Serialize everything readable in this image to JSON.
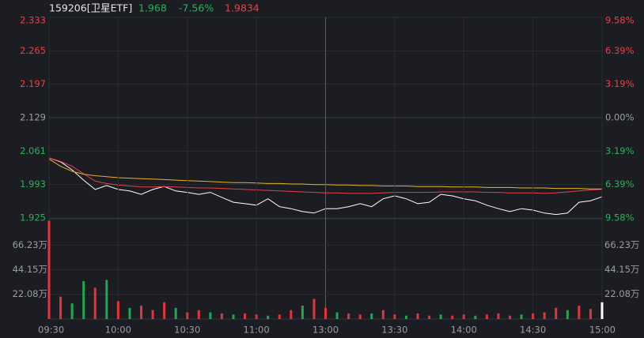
{
  "header": {
    "code": "159206[卫星ETF]",
    "price": "1.968",
    "change": "-7.56%",
    "avg": "1.9834"
  },
  "chart_data": [
    {
      "type": "line",
      "x": [
        "09:30",
        "09:35",
        "09:40",
        "09:45",
        "09:50",
        "09:55",
        "10:00",
        "10:05",
        "10:10",
        "10:15",
        "10:20",
        "10:25",
        "10:30",
        "10:35",
        "10:40",
        "10:45",
        "10:50",
        "10:55",
        "11:00",
        "11:05",
        "11:10",
        "11:15",
        "11:20",
        "11:25",
        "11:30",
        "13:05",
        "13:10",
        "13:15",
        "13:20",
        "13:25",
        "13:30",
        "13:35",
        "13:40",
        "13:45",
        "13:50",
        "13:55",
        "14:00",
        "14:05",
        "14:10",
        "14:15",
        "14:20",
        "14:25",
        "14:30",
        "14:35",
        "14:40",
        "14:45",
        "14:50",
        "14:55",
        "15:00"
      ],
      "series": [
        {
          "color": "#ffffff",
          "values": [
            2.047,
            2.039,
            2.023,
            2.002,
            1.983,
            1.991,
            1.983,
            1.98,
            1.973,
            1.983,
            1.989,
            1.98,
            1.977,
            1.973,
            1.977,
            1.967,
            1.957,
            1.954,
            1.951,
            1.964,
            1.948,
            1.944,
            1.938,
            1.935,
            1.944,
            1.944,
            1.948,
            1.954,
            1.948,
            1.964,
            1.97,
            1.964,
            1.954,
            1.957,
            1.973,
            1.97,
            1.964,
            1.96,
            1.951,
            1.944,
            1.938,
            1.944,
            1.941,
            1.935,
            1.932,
            1.935,
            1.957,
            1.96,
            1.968
          ]
        },
        {
          "color": "#e8404a",
          "values": [
            2.047,
            2.04,
            2.03,
            2.015,
            2.0,
            1.995,
            1.992,
            1.99,
            1.988,
            1.988,
            1.989,
            1.988,
            1.987,
            1.986,
            1.986,
            1.985,
            1.984,
            1.983,
            1.982,
            1.981,
            1.98,
            1.979,
            1.978,
            1.977,
            1.976,
            1.976,
            1.975,
            1.975,
            1.975,
            1.976,
            1.977,
            1.977,
            1.977,
            1.977,
            1.978,
            1.978,
            1.978,
            1.978,
            1.977,
            1.977,
            1.976,
            1.976,
            1.976,
            1.975,
            1.976,
            1.978,
            1.98,
            1.982,
            1.983
          ]
        },
        {
          "color": "#e6b422",
          "values": [
            2.045,
            2.03,
            2.02,
            2.014,
            2.011,
            2.009,
            2.007,
            2.006,
            2.005,
            2.004,
            2.003,
            2.002,
            2.001,
            2.0,
            1.999,
            1.998,
            1.997,
            1.997,
            1.996,
            1.995,
            1.995,
            1.994,
            1.994,
            1.993,
            1.993,
            1.992,
            1.992,
            1.991,
            1.991,
            1.99,
            1.99,
            1.99,
            1.989,
            1.989,
            1.989,
            1.988,
            1.988,
            1.988,
            1.987,
            1.987,
            1.987,
            1.986,
            1.986,
            1.986,
            1.985,
            1.985,
            1.985,
            1.984,
            1.984
          ]
        }
      ],
      "ylim": [
        1.925,
        2.333
      ],
      "yticks": [
        2.333,
        2.265,
        2.197,
        2.129,
        2.061,
        1.993,
        1.925
      ],
      "y2lim": [
        -9.58,
        9.58
      ],
      "y2ticks": [
        {
          "value": 9.58,
          "label": "9.58%"
        },
        {
          "value": 6.39,
          "label": "6.39%"
        },
        {
          "value": 3.19,
          "label": "3.19%"
        },
        {
          "value": 0,
          "label": "0.00%"
        },
        {
          "value": -3.19,
          "label": "3.19%"
        },
        {
          "value": -6.39,
          "label": "6.39%"
        },
        {
          "value": -9.58,
          "label": "9.58%"
        }
      ],
      "grid": true
    },
    {
      "type": "bar",
      "x": [
        "09:30",
        "09:35",
        "09:40",
        "09:45",
        "09:50",
        "09:55",
        "10:00",
        "10:05",
        "10:10",
        "10:15",
        "10:20",
        "10:25",
        "10:30",
        "10:35",
        "10:40",
        "10:45",
        "10:50",
        "10:55",
        "11:00",
        "11:05",
        "11:10",
        "11:15",
        "11:20",
        "11:25",
        "11:30",
        "13:05",
        "13:10",
        "13:15",
        "13:20",
        "13:25",
        "13:30",
        "13:35",
        "13:40",
        "13:45",
        "13:50",
        "13:55",
        "14:00",
        "14:05",
        "14:10",
        "14:15",
        "14:20",
        "14:25",
        "14:30",
        "14:35",
        "14:40",
        "14:45",
        "14:50",
        "14:55",
        "15:00"
      ],
      "values": [
        88,
        20,
        14,
        34,
        28,
        35,
        16,
        10,
        12,
        8,
        15,
        10,
        6,
        8,
        6,
        5,
        4,
        5,
        4,
        3,
        4,
        8,
        12,
        18,
        10,
        6,
        5,
        4,
        5,
        8,
        4,
        3,
        5,
        3,
        4,
        3,
        4,
        3,
        4,
        5,
        3,
        4,
        5,
        6,
        10,
        8,
        12,
        9,
        15
      ],
      "colors": [
        "#e5333a",
        "#e5333a",
        "#1fa84f",
        "#1fa84f",
        "#e5333a",
        "#1fa84f",
        "#e5333a",
        "#1fa84f",
        "#e5333a",
        "#e5333a",
        "#e5333a",
        "#1fa84f",
        "#e5333a",
        "#e5333a",
        "#1fa84f",
        "#e5333a",
        "#1fa84f",
        "#e5333a",
        "#e5333a",
        "#1fa84f",
        "#e5333a",
        "#e5333a",
        "#1fa84f",
        "#e5333a",
        "#e5333a",
        "#1fa84f",
        "#e5333a",
        "#e5333a",
        "#1fa84f",
        "#e5333a",
        "#e5333a",
        "#1fa84f",
        "#e5333a",
        "#e5333a",
        "#1fa84f",
        "#e5333a",
        "#e5333a",
        "#1fa84f",
        "#e5333a",
        "#e5333a",
        "#e5333a",
        "#1fa84f",
        "#e5333a",
        "#e5333a",
        "#e5333a",
        "#1fa84f",
        "#e5333a",
        "#e5333a",
        "#ffffff"
      ],
      "ylim": [
        0,
        88.31
      ],
      "yticks": [
        {
          "value": 66.23,
          "label": "66.23万"
        },
        {
          "value": 44.15,
          "label": "44.15万"
        },
        {
          "value": 22.08,
          "label": "22.08万"
        }
      ],
      "xticks": [
        "09:30",
        "10:00",
        "10:30",
        "11:00",
        "13:00",
        "13:30",
        "14:00",
        "14:30",
        "15:00"
      ],
      "grid": true
    }
  ]
}
